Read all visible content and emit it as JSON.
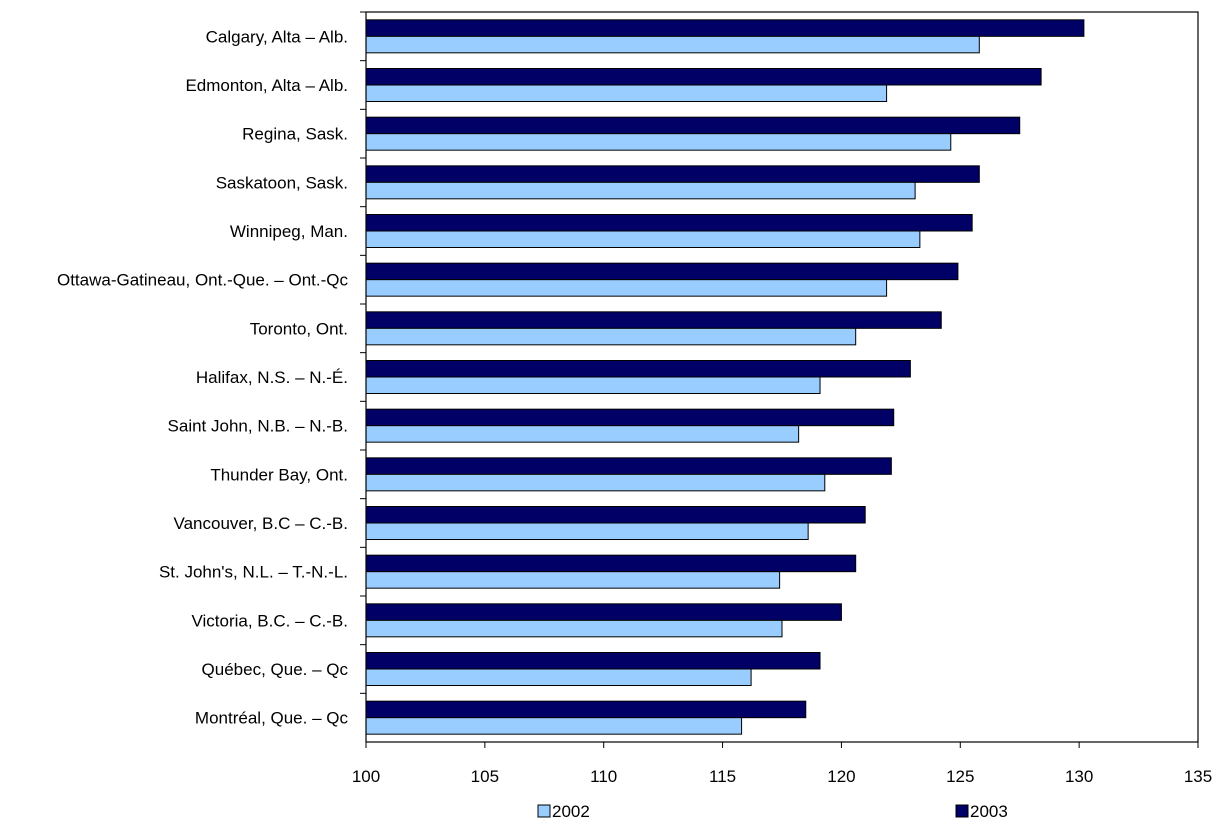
{
  "chart_data": {
    "type": "bar",
    "orientation": "horizontal",
    "title": "",
    "xlabel": "",
    "ylabel": "",
    "xlim": [
      100,
      135
    ],
    "x_ticks": [
      100,
      105,
      110,
      115,
      120,
      125,
      130,
      135
    ],
    "x_tick_labels": [
      "100",
      "105",
      "110",
      "115",
      "120",
      "125",
      "130",
      "135"
    ],
    "grid": false,
    "legend_position": "bottom",
    "categories": [
      "Calgary, Alta – Alb.",
      "Edmonton, Alta – Alb.",
      "Regina, Sask.",
      "Saskatoon, Sask.",
      "Winnipeg, Man.",
      "Ottawa-Gatineau, Ont.-Que. – Ont.-Qc",
      "Toronto, Ont.",
      "Halifax, N.S. – N.-É.",
      "Saint John, N.B. – N.-B.",
      "Thunder Bay, Ont.",
      "Vancouver, B.C – C.-B.",
      "St. John's, N.L. – T.-N.-L.",
      "Victoria, B.C. – C.-B.",
      "Québec, Que. – Qc",
      "Montréal, Que. – Qc"
    ],
    "series": [
      {
        "name": "2002",
        "color": "#99ccff",
        "values": [
          125.8,
          121.9,
          124.6,
          123.1,
          123.3,
          121.9,
          120.6,
          119.1,
          118.2,
          119.3,
          118.6,
          117.4,
          117.5,
          116.2,
          115.8
        ]
      },
      {
        "name": "2003",
        "color": "#000066",
        "values": [
          130.2,
          128.4,
          127.5,
          125.8,
          125.5,
          124.9,
          124.2,
          122.9,
          122.2,
          122.1,
          121.0,
          120.6,
          120.0,
          119.1,
          118.5
        ]
      }
    ]
  }
}
